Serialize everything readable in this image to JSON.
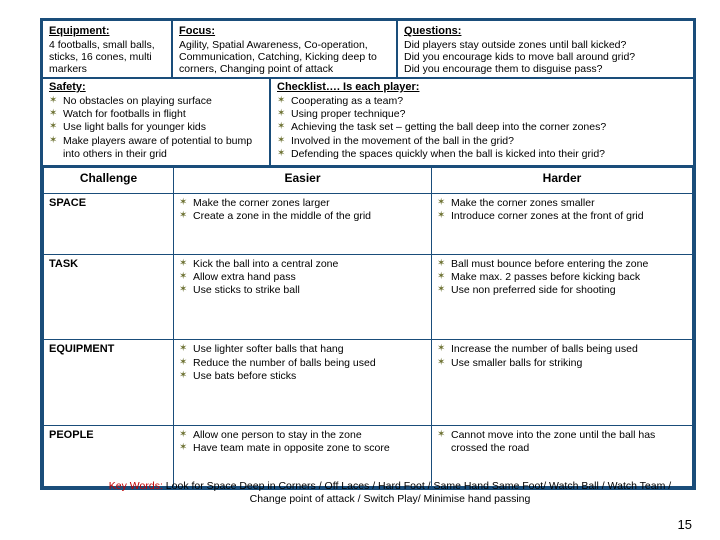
{
  "colors": {
    "border": "#1a4d7a",
    "bullet": "#6b7030",
    "keywords_label": "#c00000",
    "text": "#000000",
    "background": "#ffffff"
  },
  "top": {
    "equipment": {
      "head": "Equipment:",
      "body": "4 footballs, small balls, sticks, 16 cones, multi markers"
    },
    "focus": {
      "head": "Focus:",
      "body": "Agility, Spatial Awareness, Co-operation, Communication, Catching, Kicking deep to corners, Changing point of attack"
    },
    "questions": {
      "head": "Questions:",
      "body": "Did players stay outside zones until ball kicked?\nDid you encourage kids to move ball around grid?\nDid you encourage them to disguise pass?"
    }
  },
  "safety": {
    "head": "Safety:",
    "items": [
      "No obstacles on playing surface",
      "Watch for footballs in flight",
      "Use light balls for younger kids",
      "Make players aware of potential to bump into others in their grid"
    ]
  },
  "checklist": {
    "head": "Checklist…. Is each player:",
    "items": [
      "Cooperating as a team?",
      "Using proper technique?",
      "Achieving the task set – getting the ball deep into the corner zones?",
      "Involved in the movement of the ball in the grid?",
      "Defending the spaces quickly when the ball is kicked into their grid?"
    ]
  },
  "table": {
    "headers": {
      "c1": "Challenge",
      "c2": "Easier",
      "c3": "Harder"
    },
    "rows": [
      {
        "label": "SPACE",
        "easier": [
          "Make the corner zones larger",
          "Create a zone in the middle of the grid"
        ],
        "harder": [
          "Make the corner zones smaller",
          "Introduce corner zones at the front of grid"
        ]
      },
      {
        "label": "TASK",
        "easier": [
          "Kick the ball into a central zone",
          "Allow extra hand pass",
          "Use sticks to strike ball"
        ],
        "harder": [
          "Ball must bounce before entering the zone",
          "Make max. 2 passes before kicking back",
          "Use non preferred side for shooting"
        ]
      },
      {
        "label": "EQUIPMENT",
        "easier": [
          "Use lighter softer balls that hang",
          "Reduce the number of balls being used",
          "Use bats before sticks"
        ],
        "harder": [
          "Increase the number of balls being used",
          "Use smaller balls for striking"
        ]
      },
      {
        "label": "PEOPLE",
        "easier": [
          "Allow one person to stay in the zone",
          "Have team mate in opposite zone to score"
        ],
        "harder": [
          "Cannot move into the zone until the ball has crossed the road"
        ]
      }
    ]
  },
  "keywords": {
    "label": "Key Words:",
    "text": "Look for Space Deep in Corners / Off Laces / Hard Foot / Same Hand Same Foot/ Watch Ball / Watch Team / Change point of attack / Switch Play/ Minimise hand passing"
  },
  "page_number": "15"
}
